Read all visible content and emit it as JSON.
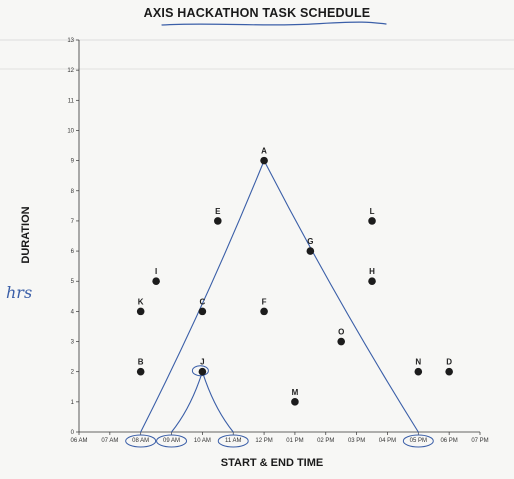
{
  "chart_data": {
    "type": "scatter",
    "title": "AXIS HACKATHON TASK SCHEDULE",
    "xlabel": "START & END TIME",
    "ylabel": "DURATION",
    "x_ticks": [
      "06 AM",
      "07 AM",
      "08 AM",
      "09 AM",
      "10 AM",
      "11 AM",
      "12 PM",
      "01 PM",
      "02 PM",
      "03 PM",
      "04 PM",
      "05 PM",
      "06 PM",
      "07 PM"
    ],
    "xlim": [
      6,
      19
    ],
    "ylim": [
      0,
      13
    ],
    "y_ticks": [
      0,
      1,
      2,
      3,
      4,
      5,
      6,
      7,
      8,
      9,
      10,
      11,
      12,
      13
    ],
    "grid": false,
    "points": [
      {
        "label": "A",
        "x": 12.0,
        "y": 9
      },
      {
        "label": "B",
        "x": 8.0,
        "y": 2
      },
      {
        "label": "C",
        "x": 10.0,
        "y": 4
      },
      {
        "label": "D",
        "x": 18.0,
        "y": 2
      },
      {
        "label": "E",
        "x": 10.5,
        "y": 7
      },
      {
        "label": "F",
        "x": 12.0,
        "y": 4
      },
      {
        "label": "G",
        "x": 13.5,
        "y": 6
      },
      {
        "label": "H",
        "x": 15.5,
        "y": 5
      },
      {
        "label": "I",
        "x": 8.5,
        "y": 5
      },
      {
        "label": "J",
        "x": 10.0,
        "y": 2
      },
      {
        "label": "K",
        "x": 8.0,
        "y": 4
      },
      {
        "label": "L",
        "x": 15.5,
        "y": 7
      },
      {
        "label": "M",
        "x": 13.0,
        "y": 1
      },
      {
        "label": "N",
        "x": 17.0,
        "y": 2
      },
      {
        "label": "O",
        "x": 14.5,
        "y": 3
      }
    ],
    "annotations": {
      "margin_note": "hrs",
      "triangles": [
        {
          "through": "A",
          "start_x": 8.0,
          "end_x": 17.0,
          "peak_x": 12.0,
          "peak_y": 9
        },
        {
          "through": "J",
          "start_x": 9.0,
          "end_x": 11.0,
          "peak_x": 10.0,
          "peak_y": 2
        }
      ],
      "circled_x_ticks": [
        "08 AM",
        "09 AM",
        "11 AM",
        "05 PM"
      ],
      "circled_points": [
        "J"
      ],
      "ink_color": "#3b5fa8"
    }
  }
}
